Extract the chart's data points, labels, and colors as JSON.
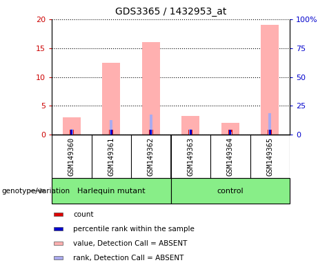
{
  "title": "GDS3365 / 1432953_at",
  "samples": [
    "GSM149360",
    "GSM149361",
    "GSM149362",
    "GSM149363",
    "GSM149364",
    "GSM149365"
  ],
  "pink_bars": [
    3.0,
    12.5,
    16.0,
    3.2,
    2.0,
    19.0
  ],
  "blue_marks_pct": [
    5.0,
    12.5,
    17.5,
    5.0,
    2.5,
    18.5
  ],
  "red_count_vals": [
    0.8,
    0.8,
    0.8,
    0.8,
    0.8,
    0.8
  ],
  "blue_count_pct": [
    4.0,
    4.0,
    4.0,
    4.0,
    4.0,
    4.0
  ],
  "ylim_left": [
    0,
    20
  ],
  "ylim_right": [
    0,
    100
  ],
  "yticks_left": [
    0,
    5,
    10,
    15,
    20
  ],
  "yticks_right": [
    0,
    25,
    50,
    75,
    100
  ],
  "ytick_labels_left": [
    "0",
    "5",
    "10",
    "15",
    "20"
  ],
  "ytick_labels_right": [
    "0",
    "25",
    "50",
    "75",
    "100%"
  ],
  "pink_color": "#ffb0b0",
  "blue_color": "#aaaaee",
  "red_color": "#dd0000",
  "darkblue_color": "#0000cc",
  "left_axis_color": "#cc0000",
  "right_axis_color": "#0000cc",
  "bg_color": "#ffffff",
  "sample_bg_color": "#cccccc",
  "green_color": "#88ee88",
  "group1_label": "Harlequin mutant",
  "group2_label": "control",
  "genotype_label": "genotype/variation",
  "legend_entries": [
    {
      "color": "#dd0000",
      "label": "count"
    },
    {
      "color": "#0000cc",
      "label": "percentile rank within the sample"
    },
    {
      "color": "#ffb0b0",
      "label": "value, Detection Call = ABSENT"
    },
    {
      "color": "#aaaaee",
      "label": "rank, Detection Call = ABSENT"
    }
  ]
}
